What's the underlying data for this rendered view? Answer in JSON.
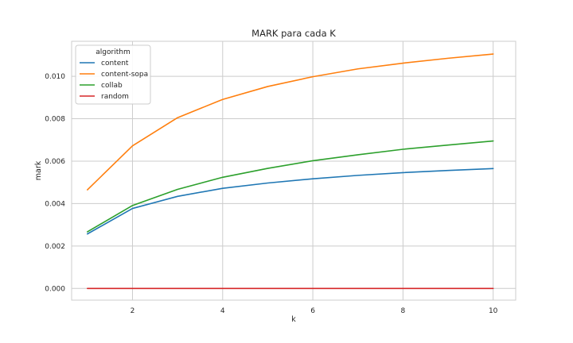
{
  "chart_data": {
    "type": "line",
    "title": "MARK para cada K",
    "xlabel": "k",
    "ylabel": "mark",
    "x": [
      1,
      2,
      3,
      4,
      5,
      6,
      7,
      8,
      9,
      10
    ],
    "xlim": [
      0.65,
      10.5
    ],
    "ylim": [
      -0.00055,
      0.01165
    ],
    "xticks": [
      2,
      4,
      6,
      8,
      10
    ],
    "yticks": [
      0.0,
      0.002,
      0.004,
      0.006,
      0.008,
      0.01
    ],
    "ytick_labels": [
      "0.000",
      "0.002",
      "0.004",
      "0.006",
      "0.008",
      "0.010"
    ],
    "grid": true,
    "legend": {
      "title": "algorithm",
      "position": "top-left"
    },
    "series": [
      {
        "name": "content",
        "color": "#1f77b4",
        "values": [
          0.00257,
          0.00377,
          0.00434,
          0.00472,
          0.00497,
          0.00517,
          0.00533,
          0.00546,
          0.00556,
          0.00565
        ]
      },
      {
        "name": "content-sopa",
        "color": "#ff7f0e",
        "values": [
          0.00465,
          0.00672,
          0.00805,
          0.00891,
          0.00952,
          0.00998,
          0.01035,
          0.01062,
          0.01085,
          0.01105
        ]
      },
      {
        "name": "collab",
        "color": "#2ca02c",
        "values": [
          0.00267,
          0.00391,
          0.00467,
          0.00524,
          0.00566,
          0.00602,
          0.0063,
          0.00656,
          0.00676,
          0.00695
        ]
      },
      {
        "name": "random",
        "color": "#d62728",
        "values": [
          0.0,
          0.0,
          0.0,
          0.0,
          0.0,
          0.0,
          0.0,
          0.0,
          0.0,
          0.0
        ]
      }
    ]
  }
}
